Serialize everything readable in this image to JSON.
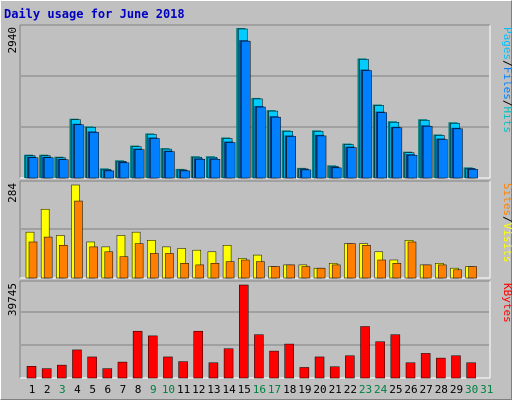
{
  "title": "Daily usage for June 2018",
  "chart_data": [
    {
      "type": "bar",
      "panel": "pages-files-hits",
      "categories": [
        "1",
        "2",
        "3",
        "4",
        "5",
        "6",
        "7",
        "8",
        "9",
        "10",
        "11",
        "12",
        "13",
        "14",
        "15",
        "16",
        "17",
        "18",
        "19",
        "20",
        "21",
        "22",
        "23",
        "24",
        "25",
        "26",
        "27",
        "28",
        "29",
        "30",
        "31"
      ],
      "weekend": [
        false,
        false,
        true,
        false,
        false,
        false,
        false,
        false,
        true,
        true,
        false,
        false,
        false,
        false,
        false,
        true,
        true,
        false,
        false,
        false,
        false,
        false,
        true,
        true,
        false,
        false,
        false,
        false,
        false,
        true,
        true
      ],
      "ymax": 2940,
      "ymax_label": "2940",
      "series": [
        {
          "name": "Hits",
          "color": "#00ccff",
          "shadow_color": "#008080",
          "values": [
            440,
            440,
            400,
            1150,
            1000,
            170,
            330,
            620,
            860,
            570,
            160,
            410,
            410,
            780,
            2940,
            1560,
            1320,
            920,
            180,
            920,
            230,
            660,
            2340,
            1430,
            1100,
            500,
            1140,
            840,
            1080,
            190,
            0
          ]
        },
        {
          "name": "Files",
          "color": "#0080ff",
          "shadow_color": "#004080",
          "values": [
            400,
            400,
            360,
            1050,
            900,
            140,
            300,
            560,
            780,
            520,
            140,
            370,
            370,
            700,
            2700,
            1400,
            1200,
            820,
            160,
            830,
            200,
            600,
            2120,
            1290,
            990,
            450,
            1020,
            760,
            970,
            170,
            0
          ]
        },
        {
          "name": "Pages",
          "color": "#00c0ff",
          "shadow_color": "#006080",
          "values": [
            0,
            0,
            0,
            0,
            0,
            0,
            0,
            0,
            0,
            0,
            0,
            0,
            0,
            0,
            0,
            0,
            0,
            0,
            0,
            0,
            0,
            0,
            0,
            0,
            0,
            0,
            0,
            0,
            0,
            0,
            0
          ]
        }
      ],
      "side_label": {
        "parts": [
          "Pages",
          "Files",
          "Hits"
        ],
        "colors": [
          "#00c0ff",
          "#0080ff",
          "#00c0c0"
        ],
        "separator": " / "
      }
    },
    {
      "type": "bar",
      "panel": "visits-sites",
      "categories": [
        "1",
        "2",
        "3",
        "4",
        "5",
        "6",
        "7",
        "8",
        "9",
        "10",
        "11",
        "12",
        "13",
        "14",
        "15",
        "16",
        "17",
        "18",
        "19",
        "20",
        "21",
        "22",
        "23",
        "24",
        "25",
        "26",
        "27",
        "28",
        "29",
        "30",
        "31"
      ],
      "ymax": 284,
      "ymax_label": "284",
      "series": [
        {
          "name": "Visits",
          "color": "#ffff00",
          "values": [
            140,
            210,
            130,
            284,
            110,
            95,
            130,
            140,
            115,
            95,
            90,
            85,
            80,
            100,
            60,
            70,
            35,
            40,
            40,
            30,
            45,
            105,
            105,
            80,
            55,
            115,
            40,
            45,
            30,
            35,
            0
          ]
        },
        {
          "name": "Sites",
          "color": "#ff8000",
          "values": [
            110,
            125,
            100,
            235,
            95,
            80,
            65,
            105,
            75,
            75,
            45,
            40,
            45,
            50,
            55,
            50,
            35,
            40,
            35,
            30,
            40,
            105,
            100,
            55,
            45,
            110,
            40,
            40,
            25,
            35,
            0
          ]
        }
      ],
      "side_label": {
        "parts": [
          "Sites",
          "Visits"
        ],
        "colors": [
          "#ff8000",
          "#ffff00"
        ],
        "separator": " / "
      }
    },
    {
      "type": "bar",
      "panel": "kbytes",
      "categories": [
        "1",
        "2",
        "3",
        "4",
        "5",
        "6",
        "7",
        "8",
        "9",
        "10",
        "11",
        "12",
        "13",
        "14",
        "15",
        "16",
        "17",
        "18",
        "19",
        "20",
        "21",
        "22",
        "23",
        "24",
        "25",
        "26",
        "27",
        "28",
        "29",
        "30",
        "31"
      ],
      "ymax": 39745,
      "ymax_label": "39745",
      "series": [
        {
          "name": "KBytes",
          "color": "#ff0000",
          "values": [
            5000,
            4000,
            5500,
            12000,
            9000,
            4000,
            6800,
            20000,
            18000,
            9000,
            7000,
            20000,
            6500,
            12500,
            39745,
            18500,
            11500,
            14500,
            4500,
            9000,
            4800,
            9500,
            22000,
            15500,
            18500,
            6500,
            10500,
            8500,
            9500,
            6500,
            0
          ]
        }
      ],
      "side_label": {
        "parts": [
          "KBytes"
        ],
        "colors": [
          "#ff0000"
        ],
        "separator": ""
      }
    }
  ]
}
